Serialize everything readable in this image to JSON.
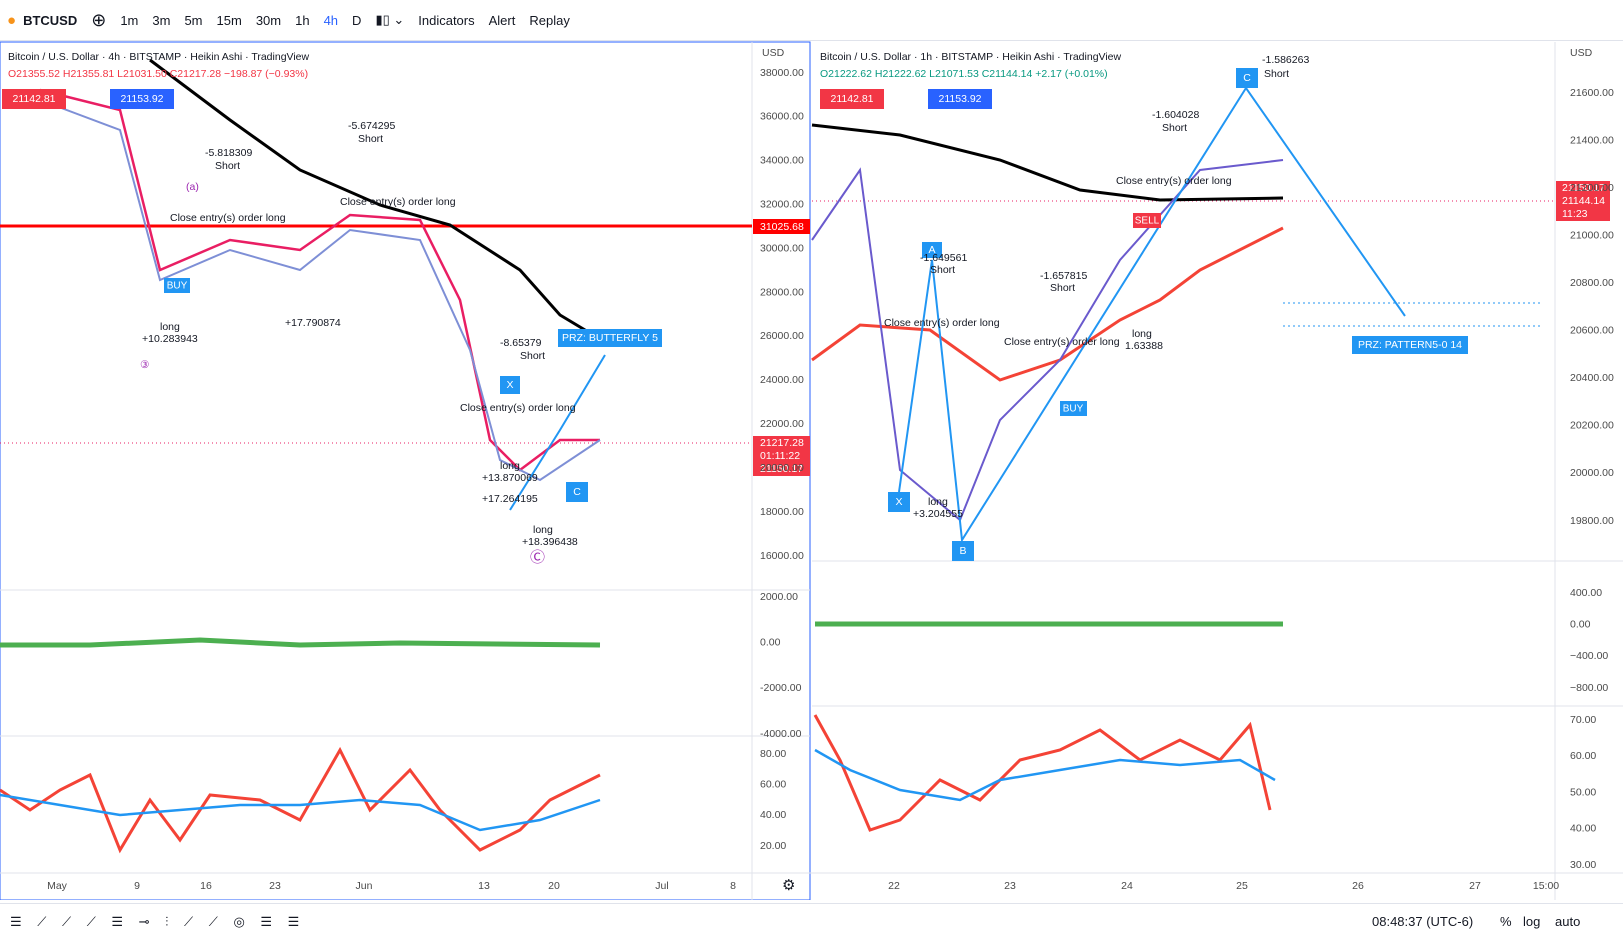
{
  "toolbar": {
    "symbol": "BTCUSD",
    "intervals": [
      "1m",
      "3m",
      "5m",
      "15m",
      "30m",
      "1h",
      "4h",
      "D"
    ],
    "indicators": "Indicators",
    "alert": "Alert",
    "replay": "Replay"
  },
  "left_chart": {
    "title": "Bitcoin / U.S. Dollar · 4h · BITSTAMP · Heikin Ashi · TradingView",
    "ohlc": "O21355.52 H21355.81 L21031.50 C21217.28 −198.87 (−0.93%)",
    "sell_price": "21142.81",
    "buy_price": "21153.92",
    "currency": "USD",
    "price_axis": [
      "38000.00",
      "36000.00",
      "34000.00",
      "32000.00",
      "30000.00",
      "28000.00",
      "26000.00",
      "24000.00",
      "22000.00",
      "20000.00",
      "18000.00",
      "16000.00"
    ],
    "level_badge": "31025.68",
    "last_price": "21217.28",
    "countdown": "01:11:22",
    "second_price": "21150.17",
    "macd_axis": [
      "2000.00",
      "0.00",
      "-2000.00",
      "-4000.00"
    ],
    "rsi_axis": [
      "80.00",
      "60.00",
      "40.00",
      "20.00"
    ],
    "time_axis": [
      "May",
      "9",
      "16",
      "23",
      "Jun",
      "13",
      "20",
      "Jul",
      "8"
    ],
    "annotations": {
      "wave_a": "(a)",
      "wave_3": "③",
      "wave_c": "Ⓒ",
      "short_1": "-5.818309",
      "short_1_label": "Short",
      "short_2": "-5.674295",
      "short_2_label": "Short",
      "close_1": "Close entry(s) order long",
      "close_2": "Close entry(s) order long",
      "long_1": "long",
      "long_1_value": "+10.283943",
      "long_2_value": "+17.790874",
      "prz": "PRZ: BUTTERFLY 5",
      "short_3": "-8.65379",
      "short_3_label": "Short",
      "close_3": "Close entry(s) order long",
      "long_3": "long",
      "long_3_value": "+13.870069",
      "long_4_value": "+17.264195",
      "long_5": "long",
      "long_5_value": "+18.396438",
      "buy": "BUY",
      "point_c": "C",
      "point_x": "X"
    }
  },
  "right_chart": {
    "title": "Bitcoin / U.S. Dollar · 1h · BITSTAMP · Heikin Ashi · TradingView",
    "ohlc": "O21222.62 H21222.62 L21071.53 C21144.14 +2.17 (+0.01%)",
    "sell_price": "21142.81",
    "buy_price": "21153.92",
    "currency": "USD",
    "price_axis": [
      "21600.00",
      "21400.00",
      "21200.00",
      "21000.00",
      "20800.00",
      "20600.00",
      "20400.00",
      "20200.00",
      "20000.00",
      "19800.00"
    ],
    "badge_1": "21150.17",
    "badge_2": "21144.14",
    "countdown": "11:23",
    "macd_axis": [
      "400.00",
      "0.00",
      "−400.00",
      "−800.00"
    ],
    "rsi_axis": [
      "70.00",
      "60.00",
      "50.00",
      "40.00",
      "30.00"
    ],
    "time_axis": [
      "22",
      "23",
      "24",
      "25",
      "26",
      "27",
      "15:00"
    ],
    "annotations": {
      "point_c": "C",
      "short_c": "Short",
      "value_c": "-1.586263",
      "point_x": "X",
      "point_a": "A",
      "point_b": "B",
      "short_a": "-1.649561",
      "short_a_label": "Short",
      "close_1": "Close entry(s) order long",
      "long_1": "long",
      "long_1_value": "+3.204555",
      "short_2": "-1.657815",
      "short_2_label": "Short",
      "close_2": "Close entry(s) order long",
      "short_3": "-1.604028",
      "short_3_label": "Short",
      "close_3": "Close entry(s) order long",
      "long_2": "long",
      "long_2_value": "1.63388",
      "sell": "SELL",
      "buy": "BUY",
      "prz": "PRZ: PATTERN5-0 14"
    }
  },
  "bottom_bar": {
    "clock": "08:48:37 (UTC-6)",
    "percent": "%",
    "log": "log",
    "auto": "auto"
  }
}
